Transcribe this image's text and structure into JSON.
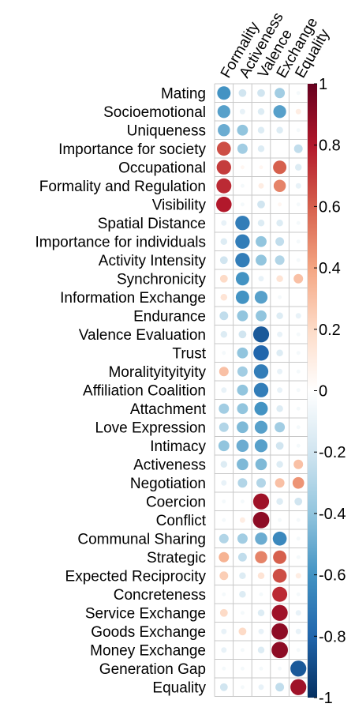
{
  "chart_data": {
    "type": "heatmap",
    "style": "correlation-circles",
    "columns": [
      "Formality",
      "Activeness",
      "Valence",
      "Exchange",
      "Equality"
    ],
    "rows": [
      "Mating",
      "Socioemotional",
      "Uniqueness",
      "Importance for society",
      "Occupational",
      "Formality and Regulation",
      "Visibility",
      "Spatial Distance",
      "Importance for individuals",
      "Activity Intensity",
      "Synchronicity",
      "Information Exchange",
      "Endurance",
      "Valence Evaluation",
      "Trust",
      "Moralityityityity",
      "Affiliation Coalition",
      "Attachment",
      "Love Expression",
      "Intimacy",
      "Activeness",
      "Negotiation",
      "Coercion",
      "Conflict",
      "Communal Sharing",
      "Strategic",
      "Expected Reciprocity",
      "Concreteness",
      "Service Exchange",
      "Goods Exchange",
      "Money Exchange",
      "Generation Gap",
      "Equality"
    ],
    "values": [
      [
        -0.6,
        -0.2,
        -0.2,
        -0.35,
        -0.05
      ],
      [
        -0.55,
        -0.1,
        -0.15,
        -0.55,
        0.1
      ],
      [
        -0.5,
        -0.4,
        -0.15,
        -0.15,
        -0.05
      ],
      [
        0.65,
        -0.35,
        -0.15,
        0.0,
        -0.25
      ],
      [
        0.7,
        0.05,
        0.05,
        0.6,
        -0.15
      ],
      [
        0.75,
        -0.05,
        0.1,
        0.5,
        -0.1
      ],
      [
        0.8,
        -0.05,
        -0.2,
        0.05,
        -0.05
      ],
      [
        -0.1,
        -0.7,
        -0.15,
        -0.15,
        -0.05
      ],
      [
        -0.15,
        -0.7,
        -0.4,
        -0.25,
        -0.05
      ],
      [
        -0.2,
        -0.7,
        -0.4,
        -0.3,
        -0.05
      ],
      [
        0.2,
        -0.6,
        -0.1,
        0.15,
        0.3
      ],
      [
        0.15,
        -0.6,
        -0.55,
        -0.05,
        0.0
      ],
      [
        -0.25,
        -0.4,
        -0.4,
        -0.15,
        -0.1
      ],
      [
        -0.15,
        -0.2,
        -0.85,
        -0.1,
        -0.05
      ],
      [
        -0.05,
        -0.4,
        -0.8,
        -0.15,
        -0.05
      ],
      [
        0.3,
        -0.35,
        -0.7,
        -0.1,
        -0.05
      ],
      [
        -0.1,
        -0.4,
        -0.7,
        -0.1,
        -0.05
      ],
      [
        -0.35,
        -0.4,
        -0.6,
        -0.15,
        -0.05
      ],
      [
        -0.3,
        -0.45,
        -0.55,
        -0.35,
        -0.05
      ],
      [
        -0.4,
        -0.5,
        -0.55,
        -0.2,
        -0.05
      ],
      [
        -0.15,
        -0.45,
        -0.45,
        -0.15,
        0.3
      ],
      [
        -0.1,
        -0.3,
        -0.3,
        0.3,
        0.45
      ],
      [
        -0.05,
        -0.05,
        0.85,
        -0.15,
        -0.2
      ],
      [
        -0.05,
        0.1,
        0.9,
        -0.05,
        -0.05
      ],
      [
        -0.3,
        -0.35,
        -0.5,
        -0.65,
        -0.05
      ],
      [
        0.35,
        -0.25,
        0.5,
        0.6,
        -0.05
      ],
      [
        0.25,
        -0.15,
        0.15,
        0.65,
        0.1
      ],
      [
        -0.05,
        -0.15,
        -0.05,
        0.75,
        -0.05
      ],
      [
        0.2,
        -0.05,
        -0.15,
        0.85,
        -0.1
      ],
      [
        -0.1,
        0.2,
        -0.1,
        0.9,
        -0.1
      ],
      [
        -0.1,
        -0.05,
        -0.15,
        0.9,
        -0.05
      ],
      [
        -0.05,
        -0.05,
        -0.05,
        -0.05,
        -0.85
      ],
      [
        -0.2,
        -0.05,
        -0.1,
        -0.25,
        0.85
      ]
    ],
    "color_scale": {
      "min": -1,
      "max": 1,
      "ticks": [
        "1",
        "0.8",
        "0.6",
        "0.4",
        "0.2",
        "0",
        "-0.2",
        "-0.4",
        "-0.6",
        "-0.8",
        "-1"
      ],
      "colors": [
        "#053061",
        "#2166ac",
        "#4393c3",
        "#92c5de",
        "#d1e5f0",
        "#ffffff",
        "#fddbc7",
        "#f4a582",
        "#d6604d",
        "#b2182b",
        "#67001f"
      ]
    },
    "grid": true,
    "legend": "right"
  }
}
